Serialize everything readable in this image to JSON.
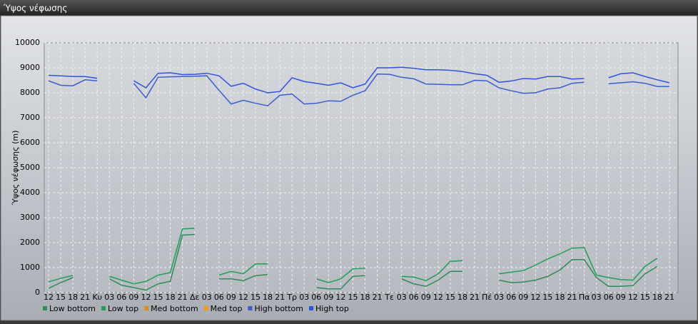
{
  "chart_data": {
    "type": "line",
    "title": "Ύψος νέφωσης",
    "ylabel": "Ύψος νέφωσης (m)",
    "categories": [
      "12",
      "15",
      "18",
      "21",
      "Κυ",
      "03",
      "06",
      "09",
      "12",
      "15",
      "18",
      "21",
      "Δε",
      "03",
      "06",
      "09",
      "12",
      "15",
      "18",
      "21",
      "Τρ",
      "03",
      "06",
      "09",
      "12",
      "15",
      "18",
      "21",
      "Τε",
      "03",
      "06",
      "09",
      "12",
      "15",
      "18",
      "21",
      "Πέ",
      "03",
      "06",
      "09",
      "12",
      "15",
      "18",
      "21",
      "Πα",
      "03",
      "06",
      "09",
      "12",
      "15",
      "18",
      "21"
    ],
    "ylim": [
      0,
      10000
    ],
    "yticks": [
      0,
      1000,
      2000,
      3000,
      4000,
      5000,
      6000,
      7000,
      8000,
      9000,
      10000
    ],
    "grid": true,
    "legend": "bottom",
    "series": [
      {
        "name": "Low bottom",
        "color": "#2e8b57",
        "values": [
          170,
          400,
          600,
          null,
          null,
          550,
          300,
          200,
          100,
          350,
          450,
          2300,
          2330,
          null,
          550,
          550,
          480,
          680,
          720,
          null,
          null,
          null,
          200,
          150,
          150,
          650,
          680,
          null,
          null,
          550,
          350,
          250,
          500,
          850,
          850,
          null,
          null,
          500,
          400,
          420,
          500,
          650,
          900,
          1320,
          1320,
          600,
          250,
          250,
          280,
          750,
          1050,
          null
        ]
      },
      {
        "name": "Low top",
        "color": "#1f9e5a",
        "values": [
          430,
          570,
          690,
          null,
          null,
          650,
          500,
          350,
          450,
          700,
          800,
          2550,
          2570,
          null,
          700,
          850,
          750,
          1150,
          1150,
          null,
          null,
          null,
          550,
          400,
          550,
          950,
          980,
          null,
          null,
          650,
          620,
          480,
          750,
          1250,
          1280,
          null,
          null,
          750,
          820,
          880,
          1100,
          1350,
          1550,
          1780,
          1800,
          700,
          600,
          520,
          500,
          1050,
          1380,
          null
        ]
      },
      {
        "name": "Med bottom",
        "color": "#e08a1e",
        "values": [
          null,
          null,
          null,
          null,
          null,
          null,
          null,
          null,
          null,
          null,
          null,
          null,
          null,
          null,
          null,
          null,
          null,
          null,
          null,
          null,
          null,
          null,
          null,
          null,
          null,
          null,
          null,
          null,
          null,
          null,
          null,
          null,
          null,
          null,
          null,
          null,
          null,
          null,
          null,
          null,
          null,
          null,
          null,
          null,
          null,
          null,
          null,
          null,
          null,
          null,
          null,
          null
        ]
      },
      {
        "name": "Med top",
        "color": "#f39c12",
        "values": [
          null,
          null,
          null,
          null,
          null,
          null,
          null,
          null,
          null,
          null,
          null,
          null,
          null,
          null,
          null,
          null,
          null,
          null,
          null,
          null,
          null,
          null,
          null,
          null,
          null,
          null,
          null,
          null,
          null,
          null,
          null,
          null,
          null,
          null,
          null,
          null,
          null,
          null,
          null,
          null,
          null,
          null,
          null,
          null,
          null,
          null,
          null,
          null,
          null,
          null,
          null,
          null
        ]
      },
      {
        "name": "High bottom",
        "color": "#3a5fcd",
        "values": [
          8480,
          8300,
          8280,
          8520,
          8480,
          null,
          null,
          8380,
          7800,
          8620,
          8640,
          8650,
          8660,
          8680,
          8100,
          7550,
          7700,
          7580,
          7480,
          7900,
          7950,
          7550,
          7580,
          7680,
          7660,
          7900,
          8080,
          8750,
          8740,
          8620,
          8560,
          8350,
          8340,
          8320,
          8320,
          8500,
          8480,
          8200,
          8080,
          7980,
          8000,
          8150,
          8200,
          8380,
          8420,
          null,
          8360,
          8400,
          8440,
          8380,
          8250,
          8250
        ]
      },
      {
        "name": "High top",
        "color": "#2f55dd",
        "values": [
          8700,
          8680,
          8650,
          8650,
          8580,
          null,
          null,
          8480,
          8200,
          8780,
          8800,
          8730,
          8740,
          8780,
          8680,
          8260,
          8380,
          8150,
          8000,
          8050,
          8600,
          8450,
          8380,
          8300,
          8400,
          8200,
          8350,
          9000,
          9000,
          9020,
          8980,
          8920,
          8920,
          8900,
          8850,
          8760,
          8700,
          8420,
          8470,
          8570,
          8550,
          8650,
          8650,
          8550,
          8570,
          null,
          8600,
          8760,
          8800,
          8650,
          8520,
          8400
        ]
      }
    ]
  }
}
